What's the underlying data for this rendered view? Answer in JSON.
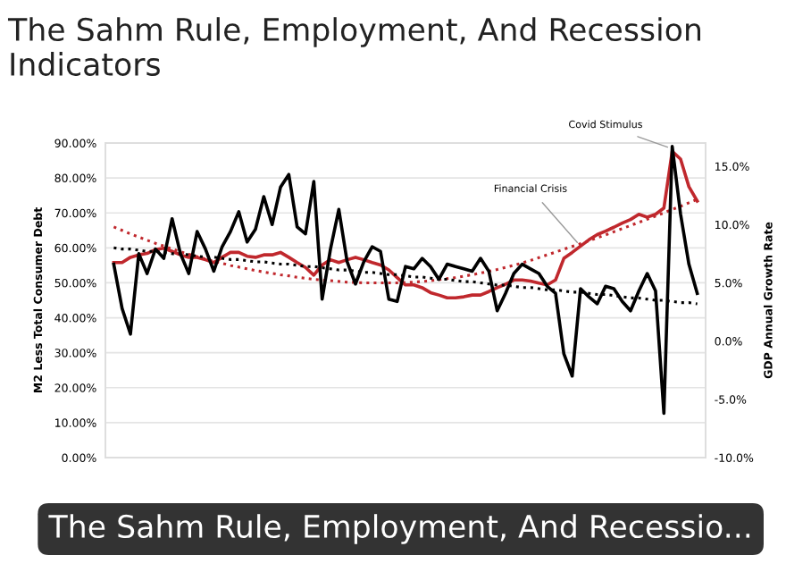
{
  "chart_data": {
    "type": "line",
    "title": "The Sahm Rule, Employment, And Recession Indicators",
    "ylabel": "M2 Less Total Consumer Debt",
    "y2label": "GDP Annual Growth Rate",
    "annotations": [
      "Covid Stimulus",
      "Financial Crisis",
      "The Sahm Rule, Employment, And Recessio..."
    ],
    "categories": [
      null,
      null,
      null,
      null,
      null,
      null,
      null,
      null,
      null,
      null,
      null,
      null,
      null,
      null,
      null,
      null,
      null,
      null,
      null,
      null,
      null,
      null,
      null,
      null,
      null,
      null,
      null,
      null,
      null,
      null,
      null,
      null,
      null,
      null,
      null,
      null,
      null,
      null,
      null,
      null,
      null,
      null,
      null,
      null,
      null,
      null,
      null,
      null,
      null,
      null,
      null,
      null,
      null,
      null,
      null,
      null,
      null,
      null,
      null,
      null,
      null,
      null,
      null,
      null,
      null,
      null,
      null,
      null,
      null,
      null,
      null
    ],
    "series": [
      {
        "color": "#000000",
        "axis": "y2",
        "values": [
          6.6,
          2.8,
          0.6,
          7.5,
          5.8,
          7.9,
          7.1,
          10.5,
          7.5,
          5.8,
          9.4,
          7.9,
          6.0,
          8.1,
          9.4,
          11.1,
          8.5,
          9.6,
          12.4,
          10.0,
          13.2,
          14.3,
          9.8,
          9.2,
          13.7,
          3.6,
          7.9,
          11.3,
          6.8,
          4.9,
          6.8,
          8.1,
          7.7,
          3.6,
          3.4,
          6.4,
          6.2,
          7.1,
          6.4,
          5.3,
          6.6,
          6.4,
          6.2,
          6.0,
          7.1,
          6.0,
          2.6,
          4.1,
          5.8,
          6.6,
          6.2,
          5.8,
          4.7,
          4.1,
          -1.1,
          -3.0,
          4.5,
          3.8,
          3.2,
          4.7,
          4.5,
          3.4,
          2.6,
          4.3,
          5.8,
          4.3,
          -6.2,
          16.7,
          10.9,
          6.6,
          4.1
        ]
      },
      {
        "color": "#c0282d",
        "axis": "y",
        "values": [
          55.8,
          55.8,
          57.3,
          58.0,
          58.4,
          59.5,
          59.9,
          59.0,
          58.0,
          57.3,
          57.3,
          56.6,
          55.8,
          57.3,
          58.7,
          58.7,
          57.6,
          57.3,
          58.0,
          58.0,
          58.7,
          57.3,
          55.8,
          54.4,
          52.2,
          55.1,
          56.6,
          55.8,
          56.6,
          57.3,
          56.6,
          55.8,
          55.1,
          53.7,
          51.5,
          49.4,
          49.4,
          48.6,
          47.2,
          46.5,
          45.7,
          45.7,
          46.0,
          46.5,
          46.5,
          47.5,
          48.6,
          49.6,
          50.8,
          50.8,
          50.5,
          49.9,
          49.4,
          50.8,
          57.0,
          58.7,
          60.5,
          62.3,
          63.8,
          64.8,
          65.9,
          67.1,
          68.1,
          69.6,
          68.8,
          69.6,
          71.4,
          87.6,
          85.4,
          77.5,
          73.4
        ]
      },
      {
        "color": "#000000",
        "axis": "y2",
        "line_style": "dotted",
        "values": [
          8.0,
          7.9,
          7.9,
          7.8,
          7.7,
          7.7,
          7.6,
          7.5,
          7.5,
          7.4,
          7.3,
          7.2,
          7.2,
          7.1,
          7.0,
          7.0,
          6.9,
          6.8,
          6.8,
          6.7,
          6.6,
          6.6,
          6.5,
          6.4,
          6.4,
          6.3,
          6.2,
          6.1,
          6.1,
          6.0,
          5.9,
          5.9,
          5.8,
          5.7,
          5.7,
          5.6,
          5.5,
          5.5,
          5.4,
          5.3,
          5.3,
          5.2,
          5.1,
          5.1,
          5.0,
          4.9,
          4.8,
          4.8,
          4.7,
          4.6,
          4.6,
          4.5,
          4.4,
          4.4,
          4.3,
          4.2,
          4.2,
          4.1,
          4.0,
          4.0,
          3.9,
          3.8,
          3.7,
          3.7,
          3.6,
          3.5,
          3.5,
          3.4,
          3.3,
          3.3,
          3.2
        ]
      },
      {
        "color": "#c0282d",
        "axis": "y",
        "line_style": "dotted",
        "values": [
          66.0,
          65.0,
          64.0,
          63.1,
          62.2,
          61.3,
          60.5,
          59.7,
          58.9,
          58.2,
          57.5,
          56.8,
          56.2,
          55.6,
          55.0,
          54.5,
          54.0,
          53.5,
          53.1,
          52.7,
          52.3,
          52.0,
          51.6,
          51.3,
          51.0,
          50.8,
          50.6,
          50.4,
          50.2,
          50.1,
          50.0,
          50.0,
          50.0,
          50.0,
          50.0,
          50.1,
          50.2,
          50.4,
          50.6,
          50.9,
          51.2,
          51.5,
          51.9,
          52.3,
          52.8,
          53.3,
          53.8,
          54.4,
          55.0,
          55.7,
          56.4,
          57.2,
          58.0,
          58.8,
          59.6,
          60.4,
          61.2,
          62.0,
          62.9,
          63.7,
          64.6,
          65.5,
          66.4,
          67.3,
          68.2,
          69.1,
          70.0,
          71.0,
          71.9,
          72.9,
          73.9
        ]
      }
    ],
    "ylim": [
      0,
      90
    ],
    "yticks": [
      {
        "value": 0,
        "label": "0.00%"
      },
      {
        "value": 10,
        "label": "10.00%"
      },
      {
        "value": 20,
        "label": "20.00%"
      },
      {
        "value": 30,
        "label": "30.00%"
      },
      {
        "value": 40,
        "label": "40.00%"
      },
      {
        "value": 50,
        "label": "50.00%"
      },
      {
        "value": 60,
        "label": "60.00%"
      },
      {
        "value": 70,
        "label": "70.00%"
      },
      {
        "value": 80,
        "label": "80.00%"
      },
      {
        "value": 90,
        "label": "90.00%"
      }
    ],
    "y2lim": [
      -10,
      17
    ],
    "y2ticks": [
      {
        "value": -10,
        "label": "-10.0%"
      },
      {
        "value": -5,
        "label": "-5.0%"
      },
      {
        "value": 0,
        "label": "0.0%"
      },
      {
        "value": 5,
        "label": "5.0%"
      },
      {
        "value": 10,
        "label": "10.0%"
      },
      {
        "value": 15,
        "label": "15.0%"
      }
    ],
    "tick_labels": "y",
    "grid": "y",
    "line_style": "solid",
    "legend": false
  }
}
